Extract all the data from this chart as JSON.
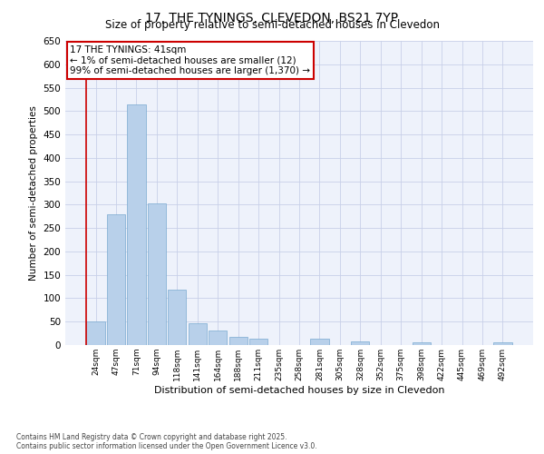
{
  "title": "17, THE TYNINGS, CLEVEDON, BS21 7YP",
  "subtitle": "Size of property relative to semi-detached houses in Clevedon",
  "xlabel": "Distribution of semi-detached houses by size in Clevedon",
  "ylabel": "Number of semi-detached properties",
  "categories": [
    "24sqm",
    "47sqm",
    "71sqm",
    "94sqm",
    "118sqm",
    "141sqm",
    "164sqm",
    "188sqm",
    "211sqm",
    "235sqm",
    "258sqm",
    "281sqm",
    "305sqm",
    "328sqm",
    "352sqm",
    "375sqm",
    "398sqm",
    "422sqm",
    "445sqm",
    "469sqm",
    "492sqm"
  ],
  "values": [
    50,
    280,
    515,
    302,
    118,
    47,
    32,
    17,
    14,
    0,
    0,
    13,
    0,
    8,
    0,
    0,
    5,
    0,
    0,
    0,
    5
  ],
  "bar_color": "#b8d0ea",
  "bar_edge_color": "#7aaad0",
  "annotation_text_line1": "17 THE TYNINGS: 41sqm",
  "annotation_text_line2": "← 1% of semi-detached houses are smaller (12)",
  "annotation_text_line3": "99% of semi-detached houses are larger (1,370) →",
  "annotation_box_color": "#cc0000",
  "ylim": [
    0,
    650
  ],
  "yticks": [
    0,
    50,
    100,
    150,
    200,
    250,
    300,
    350,
    400,
    450,
    500,
    550,
    600,
    650
  ],
  "vline_color": "#cc0000",
  "footnote1": "Contains HM Land Registry data © Crown copyright and database right 2025.",
  "footnote2": "Contains public sector information licensed under the Open Government Licence v3.0.",
  "background_color": "#eef2fb",
  "grid_color": "#c8d0e8"
}
